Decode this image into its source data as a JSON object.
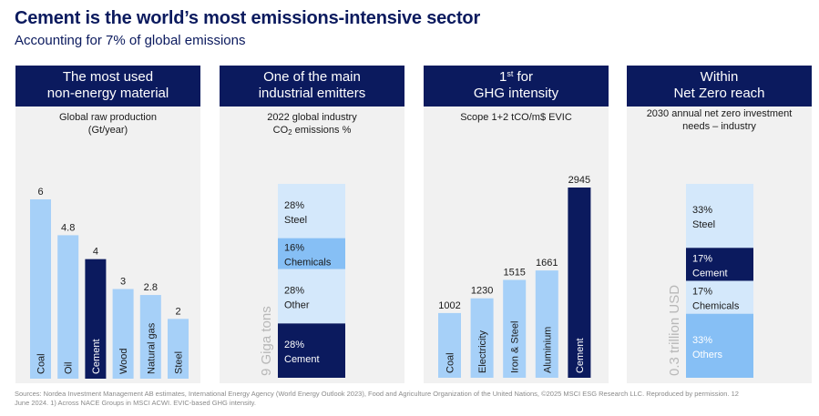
{
  "header": {
    "title": "Cement is the world’s most emissions-intensive sector",
    "subtitle": "Accounting for 7% of global emissions"
  },
  "colors": {
    "navy": "#0b1a5e",
    "light_blue": "#a6d0f8",
    "mid_blue": "#86bff5",
    "pale_blue": "#d4e8fb",
    "panel_bg": "#f1f1f1"
  },
  "panels": {
    "p1": {
      "head_line1": "The most used",
      "head_line2": "non-energy material",
      "sub_line1": "Global raw production",
      "sub_line2": "(Gt/year)"
    },
    "p2": {
      "head_line1": "One of the main",
      "head_line2": "industrial emitters",
      "sub_line1": "2022 global industry",
      "sub_co": "CO",
      "sub_two": "2",
      "sub_rest": " emissions %"
    },
    "p3": {
      "head_one": "1",
      "head_st": "st",
      "head_for": " for",
      "head_line2": "GHG intensity",
      "sub_line1": "Scope 1+2 tCO/m$ EVIC"
    },
    "p4": {
      "head_line1": "Within",
      "head_line2": "Net Zero reach",
      "sub_line1": "2030 annual net zero investment",
      "sub_line2": "needs – industry"
    }
  },
  "chart_data": [
    {
      "type": "bar",
      "title": "Global raw production (Gt/year)",
      "categories": [
        "Coal",
        "Oil",
        "Cement",
        "Wood",
        "Natural gas",
        "Steel"
      ],
      "values": [
        6,
        4.8,
        4,
        3,
        2.8,
        2
      ],
      "value_labels": [
        "6",
        "4.8",
        "4",
        "3",
        "2.8",
        "2"
      ],
      "highlight": "Cement",
      "ylim": [
        0,
        6
      ]
    },
    {
      "type": "stacked-bar",
      "title": "2022 global industry CO2 emissions %",
      "total_label": "9 Giga tons",
      "segments": [
        {
          "label": "Steel",
          "value": 28,
          "pct_label": "28%"
        },
        {
          "label": "Chemicals",
          "value": 16,
          "pct_label": "16%"
        },
        {
          "label": "Other",
          "value": 28,
          "pct_label": "28%"
        },
        {
          "label": "Cement",
          "value": 28,
          "pct_label": "28%"
        }
      ]
    },
    {
      "type": "bar",
      "title": "Scope 1+2 tCO/m$ EVIC",
      "categories": [
        "Coal",
        "Electricity",
        "Iron & Steel",
        "Aluminium",
        "Cement"
      ],
      "values": [
        1002,
        1230,
        1515,
        1661,
        2945
      ],
      "value_labels": [
        "1002",
        "1230",
        "1515",
        "1661",
        "2945"
      ],
      "highlight": "Cement",
      "ylim": [
        0,
        2945
      ]
    },
    {
      "type": "stacked-bar",
      "title": "2030 annual net zero investment needs – industry",
      "total_label": "0.3 trillion USD",
      "segments": [
        {
          "label": "Steel",
          "value": 33,
          "pct_label": "33%"
        },
        {
          "label": "Cement",
          "value": 17,
          "pct_label": "17%"
        },
        {
          "label": "Chemicals",
          "value": 17,
          "pct_label": "17%"
        },
        {
          "label": "Others",
          "value": 33,
          "pct_label": "33%"
        }
      ]
    }
  ],
  "footer": {
    "line1": "Sources: Nordea Investment Management AB estimates, International Energy Agency (World Energy Outlook 2023), Food and Agriculture Organization of the United Nations,  ©2025 MSCI ESG Research LLC. Reproduced by permission. 12",
    "line2": "June 2024. 1) Across NACE Groups in MSCI ACWI. EVIC-based GHG intensity."
  }
}
